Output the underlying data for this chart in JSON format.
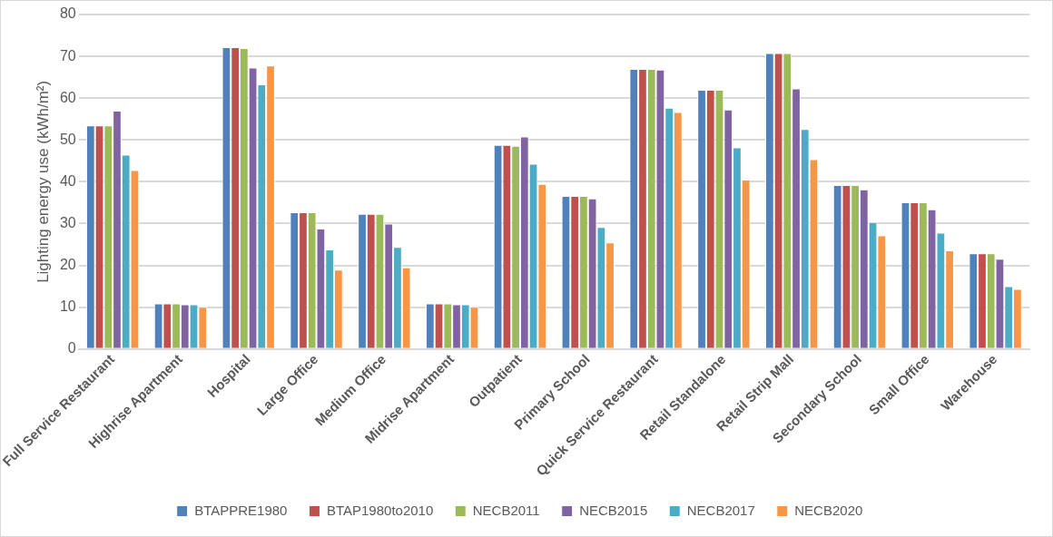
{
  "chart_data": {
    "type": "bar",
    "ylabel": "Lighting energy use (kWh/m²)",
    "categories": [
      "Full Service Restaurant",
      "Highrise Apartment",
      "Hospital",
      "Large Office",
      "Medium Office",
      "Midrise Apartment",
      "Outpatient",
      "Primary School",
      "Quick Service Restaurant",
      "Retail Standalone",
      "Retail Strip Mall",
      "Secondary School",
      "Small Office",
      "Warehouse"
    ],
    "series": [
      {
        "name": "BTAPPRE1980",
        "color": "#4f81bd",
        "values": [
          53.5,
          10.9,
          72.2,
          32.7,
          32.3,
          10.9,
          48.8,
          36.6,
          67,
          62,
          70.8,
          39.2,
          35.1,
          22.9
        ]
      },
      {
        "name": "BTAP1980to2010",
        "color": "#c0504d",
        "values": [
          53.5,
          10.9,
          72.2,
          32.7,
          32.3,
          10.9,
          48.8,
          36.6,
          67,
          62,
          70.8,
          39.2,
          35.1,
          22.9
        ]
      },
      {
        "name": "NECB2011",
        "color": "#9bbb59",
        "values": [
          53.5,
          10.9,
          72,
          32.7,
          32.3,
          10.9,
          48.6,
          36.6,
          67,
          62,
          70.8,
          39.2,
          35.1,
          22.9
        ]
      },
      {
        "name": "NECB2015",
        "color": "#8064a2",
        "values": [
          57,
          10.7,
          67.3,
          28.8,
          30,
          10.7,
          50.8,
          36,
          66.8,
          57.3,
          62.3,
          38.2,
          33.4,
          21.6
        ]
      },
      {
        "name": "NECB2017",
        "color": "#4bacc6",
        "values": [
          46.5,
          10.7,
          63.3,
          23.8,
          24.4,
          10.7,
          44.3,
          29.2,
          57.7,
          48.2,
          52.6,
          30.4,
          27.8,
          15
        ]
      },
      {
        "name": "NECB2020",
        "color": "#f79646",
        "values": [
          42.8,
          10.1,
          67.8,
          19,
          19.5,
          10.1,
          39.5,
          25.5,
          56.7,
          40.5,
          45.4,
          27.2,
          23.6,
          14.4
        ]
      }
    ],
    "ylim": [
      0,
      80
    ],
    "yticks": [
      0,
      10,
      20,
      30,
      40,
      50,
      60,
      70,
      80
    ],
    "grid": "y",
    "legend": "bottom"
  }
}
